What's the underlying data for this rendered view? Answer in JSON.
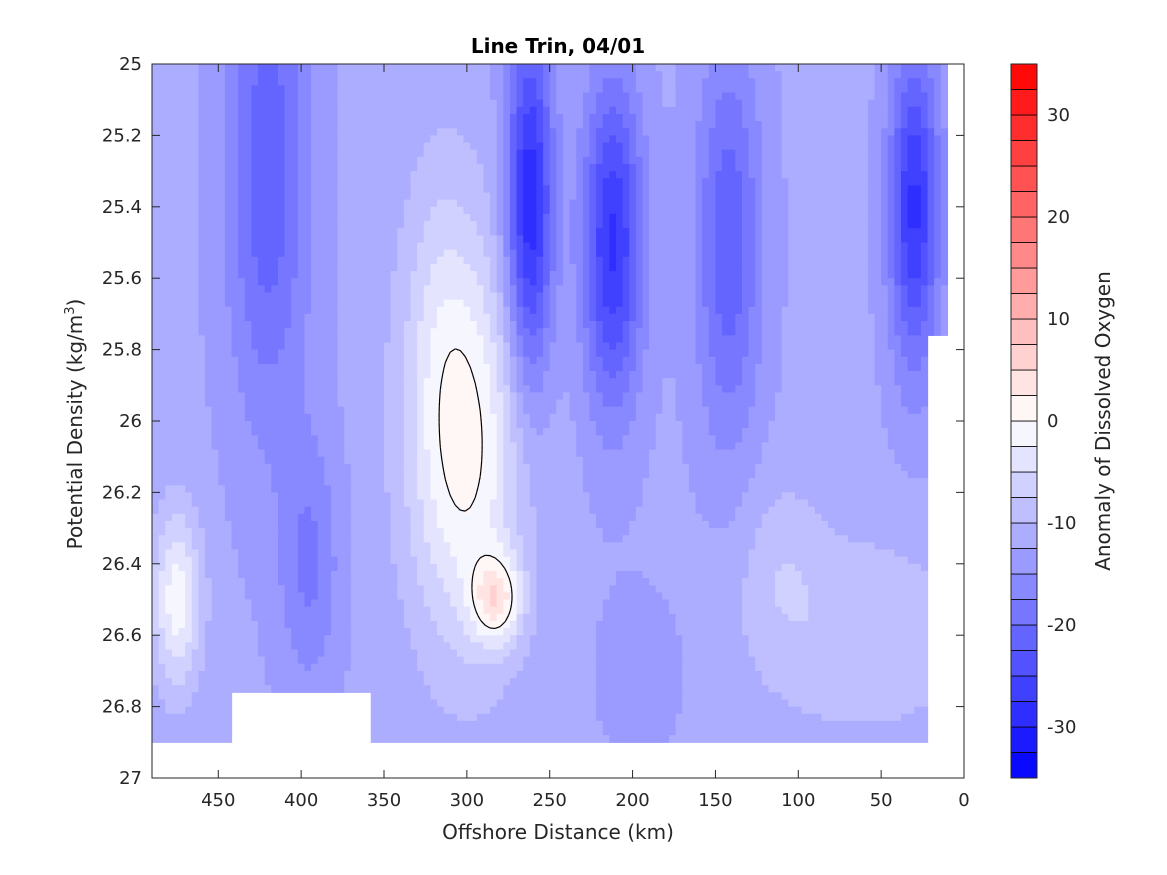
{
  "chart_data": {
    "type": "heatmap",
    "subtype": "filled-contour",
    "title": "Line Trin, 04/01",
    "xlabel": "Offshore Distance (km)",
    "ylabel_main": "Potential Density (kg/m",
    "ylabel_sup": "3",
    "ylabel_close": ")",
    "x_reversed": true,
    "y_reversed": true,
    "xlim": [
      0,
      490
    ],
    "ylim": [
      25,
      27
    ],
    "x_ticks": [
      450,
      400,
      350,
      300,
      250,
      200,
      150,
      100,
      50,
      0
    ],
    "y_ticks": [
      25,
      25.2,
      25.4,
      25.6,
      25.8,
      26,
      26.2,
      26.4,
      26.6,
      26.8,
      27
    ],
    "y_tick_labels": [
      "25",
      "25.2",
      "25.4",
      "25.6",
      "25.8",
      "26",
      "26.2",
      "26.4",
      "26.6",
      "26.8",
      "27"
    ],
    "grid": false,
    "colorbar": {
      "label": "Anomaly of Dissolved Oxygen",
      "range": [
        -35,
        35
      ],
      "step": 2.5,
      "ticks": [
        -30,
        -20,
        -10,
        0,
        10,
        20,
        30
      ],
      "neg_color": "#0000ff",
      "zero_color": "#ffffff",
      "pos_color": "#ff0000"
    },
    "contour_line_level": 0,
    "data_extent": {
      "x_min": 10,
      "x_max": 490,
      "y_min": 25,
      "y_max": 26.9
    },
    "grid_x": [
      490,
      470,
      450,
      430,
      410,
      390,
      370,
      350,
      330,
      310,
      290,
      270,
      250,
      230,
      210,
      190,
      170,
      150,
      130,
      110,
      90,
      70,
      50,
      30,
      10
    ],
    "grid_y": [
      25,
      25.1,
      25.2,
      25.3,
      25.4,
      25.5,
      25.6,
      25.7,
      25.8,
      25.9,
      26,
      26.1,
      26.2,
      26.3,
      26.4,
      26.5,
      26.6,
      26.7,
      26.8,
      26.9
    ],
    "colors": {
      "contour_line": "#000000",
      "axis": "#262626"
    }
  }
}
